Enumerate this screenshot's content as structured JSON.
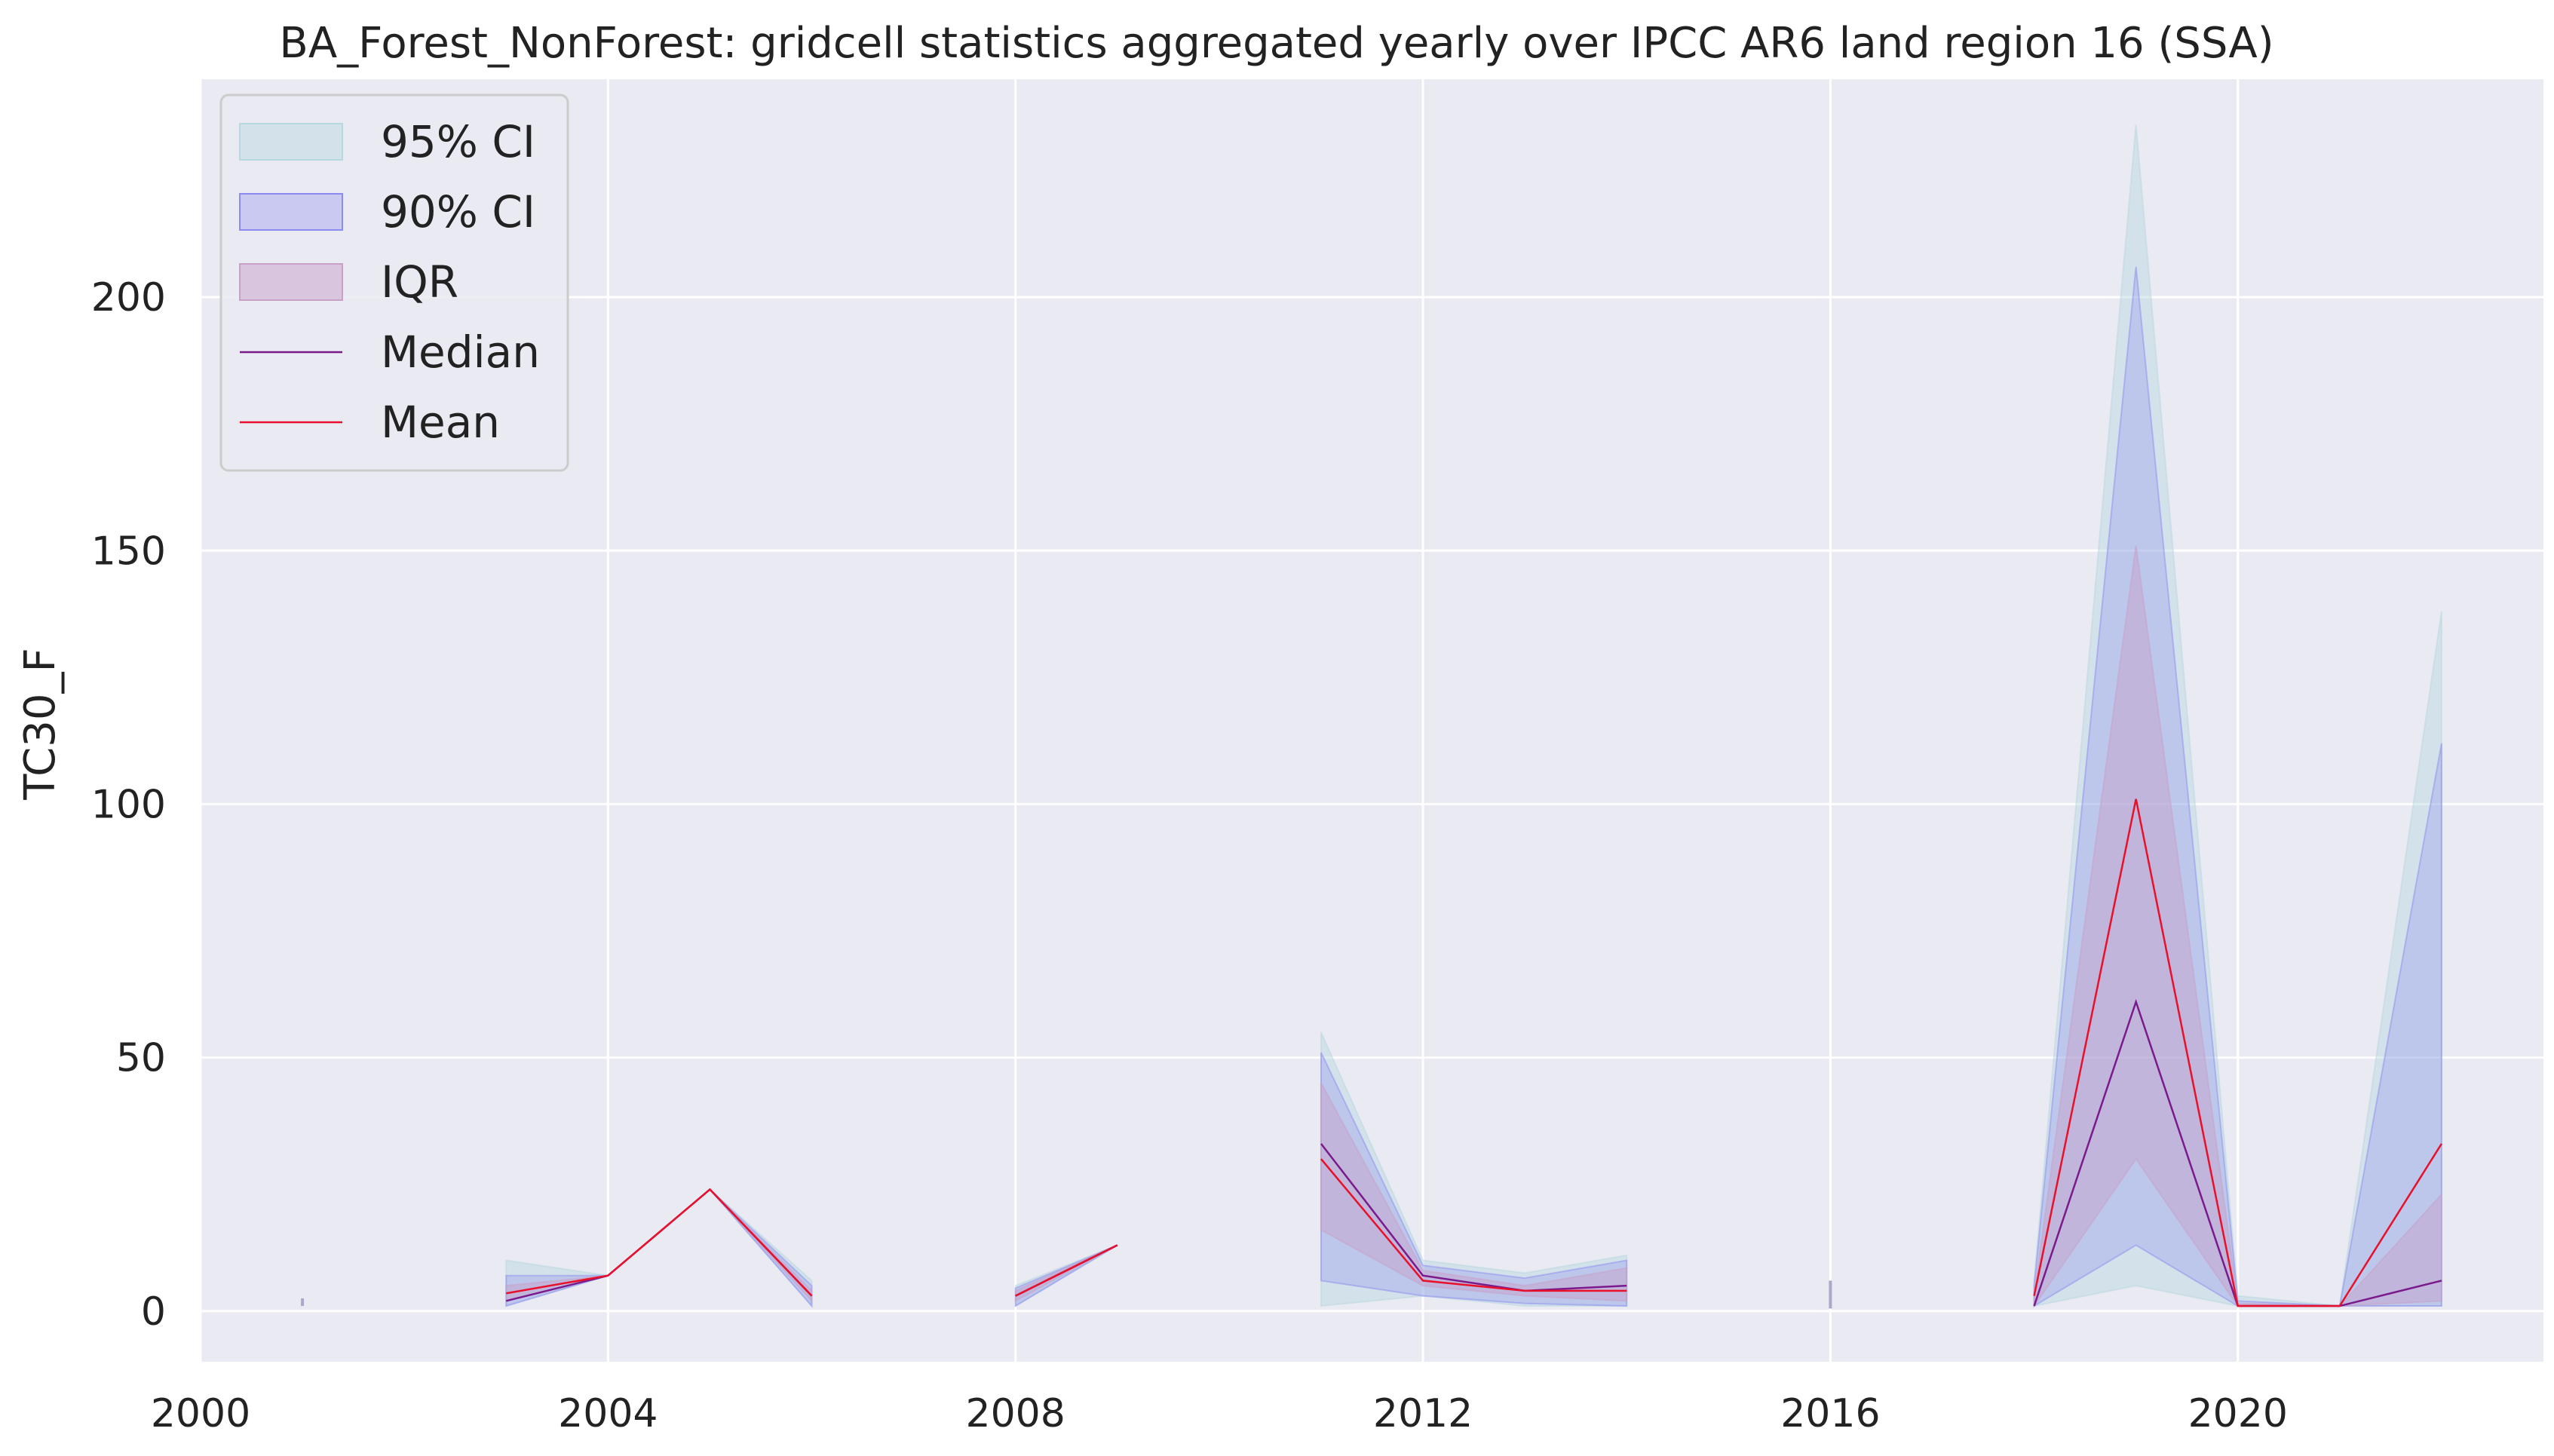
{
  "chart_data": {
    "type": "area",
    "title": "BA_Forest_NonForest: gridcell statistics aggregated yearly over IPCC AR6 land region 16 (SSA)",
    "xlabel": "",
    "ylabel": "TC30_F",
    "xlim": [
      2000,
      2023
    ],
    "ylim": [
      -10,
      243
    ],
    "x_ticks": [
      2000,
      2004,
      2008,
      2012,
      2016,
      2020
    ],
    "y_ticks": [
      0,
      50,
      100,
      150,
      200
    ],
    "grid": true,
    "legend_position": "top-left",
    "colors": {
      "background": "#eaeaf2",
      "grid": "#ffffff",
      "ci95": "#b8d8e0",
      "ci90": "#8c8cf0",
      "iqr": "#c8a0c8",
      "median": "#7a1a8c",
      "mean": "#e8102a"
    },
    "legend": [
      {
        "label": "95% CI",
        "kind": "band",
        "key": "ci95"
      },
      {
        "label": "90% CI",
        "kind": "band",
        "key": "ci90"
      },
      {
        "label": "IQR",
        "kind": "band",
        "key": "iqr"
      },
      {
        "label": "Median",
        "kind": "line",
        "key": "median"
      },
      {
        "label": "Mean",
        "kind": "line",
        "key": "mean"
      }
    ],
    "segments": [
      {
        "x": [
          2003,
          2004,
          2005,
          2006
        ],
        "ci95_low": [
          1,
          7,
          24,
          1
        ],
        "ci95_high": [
          10,
          7,
          24,
          6
        ],
        "ci90_low": [
          1,
          7,
          24,
          1
        ],
        "ci90_high": [
          7,
          7,
          24,
          5
        ],
        "iqr_low": [
          2,
          7,
          24,
          2
        ],
        "iqr_high": [
          5,
          7,
          24,
          4
        ],
        "median": [
          2,
          7,
          24,
          3
        ],
        "mean": [
          3.5,
          7,
          24,
          3
        ]
      },
      {
        "x": [
          2008,
          2009
        ],
        "ci95_low": [
          1,
          13
        ],
        "ci95_high": [
          5,
          13
        ],
        "ci90_low": [
          1,
          13
        ],
        "ci90_high": [
          4.5,
          13
        ],
        "iqr_low": [
          2,
          13
        ],
        "iqr_high": [
          4,
          13
        ],
        "median": [
          3,
          13
        ],
        "mean": [
          3,
          13
        ]
      },
      {
        "x": [
          2011,
          2012,
          2013,
          2014
        ],
        "ci95_low": [
          1,
          3,
          1,
          1
        ],
        "ci95_high": [
          55,
          10,
          7.5,
          11
        ],
        "ci90_low": [
          6,
          3,
          1.5,
          1
        ],
        "ci90_high": [
          51,
          9,
          6.5,
          10
        ],
        "iqr_low": [
          16,
          5,
          3,
          2
        ],
        "iqr_high": [
          45,
          8,
          5,
          8.5
        ],
        "median": [
          33,
          7,
          4,
          5
        ],
        "mean": [
          30,
          6,
          4,
          4
        ]
      },
      {
        "x": [
          2018,
          2019,
          2020,
          2021,
          2022
        ],
        "ci95_low": [
          1,
          5,
          1,
          1,
          1
        ],
        "ci95_high": [
          6,
          234,
          3,
          1,
          138
        ],
        "ci90_low": [
          1,
          13,
          1,
          1,
          1
        ],
        "ci90_high": [
          5,
          206,
          2,
          1,
          112
        ],
        "iqr_low": [
          1,
          30,
          1,
          1,
          2
        ],
        "iqr_high": [
          3,
          151,
          1.5,
          1,
          23
        ],
        "median": [
          1,
          61,
          1,
          1,
          6
        ],
        "mean": [
          3,
          101,
          1,
          1,
          33
        ]
      }
    ],
    "isolated_points": [
      {
        "x": 2001,
        "low": 1,
        "high": 2.5
      },
      {
        "x": 2016,
        "low": 0.5,
        "high": 6
      }
    ]
  }
}
